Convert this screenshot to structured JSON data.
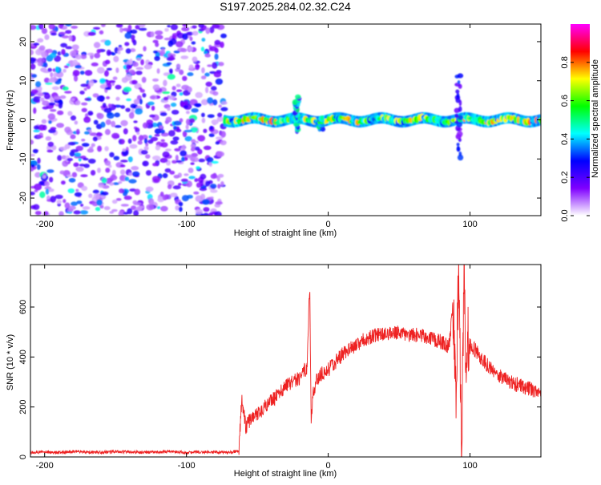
{
  "title": "S197.2025.284.02.32.C24",
  "chart_data": [
    {
      "type": "heatmap",
      "name": "spectrogram",
      "xlabel": "Height of straight line (km)",
      "ylabel": "Frequency (Hz)",
      "xlim": [
        -210,
        150
      ],
      "ylim": [
        -24.5,
        24.5
      ],
      "x_ticks": [
        -200,
        -100,
        0,
        100
      ],
      "x_tick_labels": [
        "-200",
        "-100",
        "0",
        "100"
      ],
      "y_ticks": [
        -20,
        -10,
        0,
        10,
        20
      ],
      "y_tick_labels": [
        "-20",
        "-10",
        "0",
        "10",
        "20"
      ],
      "noise_region": {
        "x_range": [
          -210,
          -73
        ],
        "freq_range": [
          -24.5,
          24.5
        ],
        "typical_amplitude": 0.15
      },
      "signal_band": {
        "x_range": [
          -73,
          150
        ],
        "center_freq": 0,
        "half_width": 1.5,
        "typical_amplitude": 0.55
      },
      "features": [
        {
          "x": -22,
          "freq_range": [
            -3,
            6
          ],
          "amplitude": 0.4
        },
        {
          "x": -5,
          "freq_range": [
            -2.5,
            0.5
          ],
          "amplitude": 0.45
        },
        {
          "x": 92,
          "freq_range": [
            -10,
            12
          ],
          "amplitude": 0.25
        }
      ]
    },
    {
      "type": "colorbar",
      "name": "amplitude-colorbar",
      "label": "Normalized spectral amplitude",
      "range": [
        0,
        1
      ],
      "ticks": [
        0.0,
        0.2,
        0.4,
        0.6,
        0.8
      ],
      "tick_labels": [
        "0.0",
        "0.2",
        "0.4",
        "0.6",
        "0.8"
      ],
      "colors": [
        "#ffffff",
        "#7f00ff",
        "#0000ff",
        "#00ffff",
        "#00ff00",
        "#ffff00",
        "#ff0000",
        "#ff00ff"
      ]
    },
    {
      "type": "line",
      "name": "snr",
      "xlabel": "Height of straight line (km)",
      "ylabel": "SNR (10 * v/v)",
      "xlim": [
        -210,
        150
      ],
      "ylim": [
        0,
        770
      ],
      "x_ticks": [
        -200,
        -100,
        0,
        100
      ],
      "x_tick_labels": [
        "-200",
        "-100",
        "0",
        "100"
      ],
      "y_ticks": [
        0,
        200,
        400,
        600
      ],
      "y_tick_labels": [
        "0",
        "200",
        "400",
        "600"
      ],
      "color": "#ee2222",
      "series": [
        {
          "name": "SNR",
          "x": [
            -210,
            -200,
            -190,
            -180,
            -170,
            -160,
            -150,
            -140,
            -130,
            -120,
            -110,
            -100,
            -90,
            -80,
            -70,
            -63,
            -61,
            -58,
            -55,
            -50,
            -45,
            -40,
            -35,
            -30,
            -25,
            -20,
            -15,
            -13,
            -12,
            -11,
            -8,
            -5,
            0,
            5,
            10,
            15,
            20,
            25,
            30,
            35,
            40,
            45,
            50,
            55,
            60,
            65,
            70,
            75,
            80,
            85,
            88,
            90,
            92,
            94,
            95,
            96,
            97,
            98,
            100,
            105,
            110,
            115,
            120,
            125,
            130,
            135,
            140,
            145,
            150
          ],
          "y": [
            18,
            20,
            17,
            22,
            19,
            18,
            21,
            20,
            18,
            19,
            22,
            17,
            20,
            19,
            18,
            25,
            230,
            120,
            150,
            170,
            200,
            225,
            250,
            280,
            300,
            315,
            360,
            700,
            120,
            250,
            310,
            330,
            350,
            380,
            410,
            430,
            450,
            470,
            480,
            490,
            495,
            500,
            495,
            490,
            490,
            485,
            480,
            470,
            460,
            440,
            600,
            250,
            720,
            30,
            400,
            760,
            260,
            480,
            450,
            420,
            380,
            350,
            330,
            310,
            295,
            285,
            275,
            268,
            265
          ]
        }
      ]
    }
  ]
}
